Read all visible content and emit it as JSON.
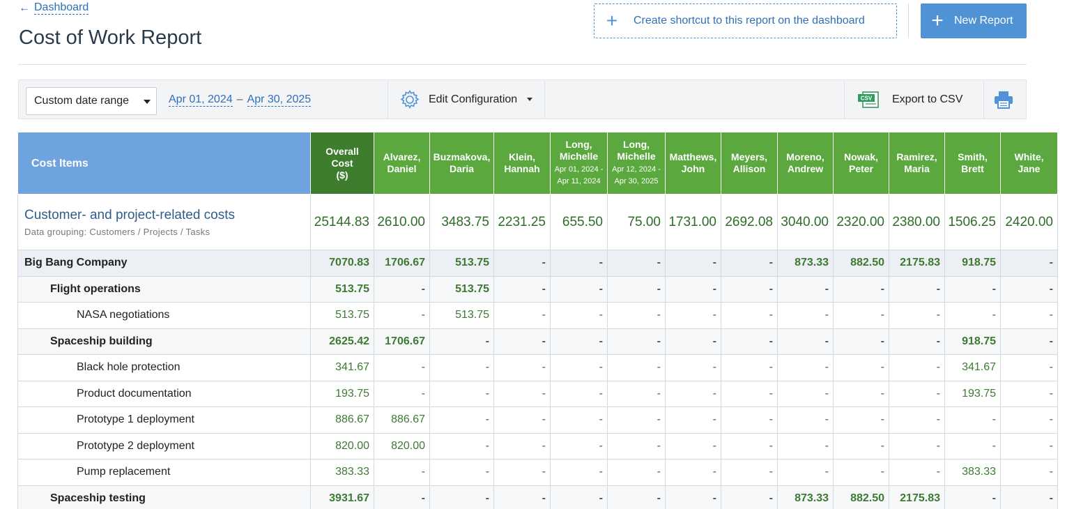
{
  "header": {
    "back_label": "Dashboard",
    "title": "Cost of Work Report",
    "shortcut_label": "Create shortcut to this report on the dashboard",
    "new_report_label": "New Report"
  },
  "toolbar": {
    "date_mode": "Custom date range",
    "date_from": "Apr 01, 2024",
    "date_sep": "–",
    "date_to": "Apr 30, 2025",
    "edit_config_label": "Edit Configuration",
    "export_label": "Export to CSV",
    "csv_badge": "CSV"
  },
  "colors": {
    "accent_blue": "#4f93d6",
    "header_green": "#5aa83e",
    "overall_green": "#3f7d2e",
    "items_blue": "#6fa3e0",
    "value_green": "#3d7a32"
  },
  "table": {
    "items_header": "Cost Items",
    "columns": [
      {
        "line1": "Overall",
        "line2": "Cost",
        "line3": "($)",
        "sub1": "",
        "sub2": ""
      },
      {
        "line1": "Alvarez,",
        "line2": "Daniel",
        "line3": "",
        "sub1": "",
        "sub2": ""
      },
      {
        "line1": "Buzmakova,",
        "line2": "Daria",
        "line3": "",
        "sub1": "",
        "sub2": ""
      },
      {
        "line1": "Klein,",
        "line2": "Hannah",
        "line3": "",
        "sub1": "",
        "sub2": ""
      },
      {
        "line1": "Long,",
        "line2": "Michelle",
        "line3": "",
        "sub1": "Apr 01, 2024 -",
        "sub2": "Apr 11, 2024"
      },
      {
        "line1": "Long,",
        "line2": "Michelle",
        "line3": "",
        "sub1": "Apr 12, 2024 -",
        "sub2": "Apr 30, 2025"
      },
      {
        "line1": "Matthews,",
        "line2": "John",
        "line3": "",
        "sub1": "",
        "sub2": ""
      },
      {
        "line1": "Meyers,",
        "line2": "Allison",
        "line3": "",
        "sub1": "",
        "sub2": ""
      },
      {
        "line1": "Moreno,",
        "line2": "Andrew",
        "line3": "",
        "sub1": "",
        "sub2": ""
      },
      {
        "line1": "Nowak,",
        "line2": "Peter",
        "line3": "",
        "sub1": "",
        "sub2": ""
      },
      {
        "line1": "Ramirez,",
        "line2": "Maria",
        "line3": "",
        "sub1": "",
        "sub2": ""
      },
      {
        "line1": "Smith,",
        "line2": "Brett",
        "line3": "",
        "sub1": "",
        "sub2": ""
      },
      {
        "line1": "White,",
        "line2": "Jane",
        "line3": "",
        "sub1": "",
        "sub2": ""
      }
    ],
    "summary": {
      "title": "Customer- and project-related costs",
      "subtitle": "Data grouping: Customers / Projects / Tasks",
      "values": [
        "25144.83",
        "2610.00",
        "3483.75",
        "2231.25",
        "655.50",
        "75.00",
        "1731.00",
        "2692.08",
        "3040.00",
        "2320.00",
        "2380.00",
        "1506.25",
        "2420.00"
      ]
    },
    "rows": [
      {
        "level": 0,
        "label": "Big Bang Company",
        "values": [
          "7070.83",
          "1706.67",
          "513.75",
          "-",
          "-",
          "-",
          "-",
          "-",
          "873.33",
          "882.50",
          "2175.83",
          "918.75",
          "-"
        ]
      },
      {
        "level": 1,
        "label": "Flight operations",
        "values": [
          "513.75",
          "-",
          "513.75",
          "-",
          "-",
          "-",
          "-",
          "-",
          "-",
          "-",
          "-",
          "-",
          "-"
        ]
      },
      {
        "level": 2,
        "label": "NASA negotiations",
        "values": [
          "513.75",
          "-",
          "513.75",
          "-",
          "-",
          "-",
          "-",
          "-",
          "-",
          "-",
          "-",
          "-",
          "-"
        ]
      },
      {
        "level": 1,
        "label": "Spaceship building",
        "values": [
          "2625.42",
          "1706.67",
          "-",
          "-",
          "-",
          "-",
          "-",
          "-",
          "-",
          "-",
          "-",
          "918.75",
          "-"
        ]
      },
      {
        "level": 2,
        "label": "Black hole protection",
        "values": [
          "341.67",
          "-",
          "-",
          "-",
          "-",
          "-",
          "-",
          "-",
          "-",
          "-",
          "-",
          "341.67",
          "-"
        ]
      },
      {
        "level": 2,
        "label": "Product documentation",
        "values": [
          "193.75",
          "-",
          "-",
          "-",
          "-",
          "-",
          "-",
          "-",
          "-",
          "-",
          "-",
          "193.75",
          "-"
        ]
      },
      {
        "level": 2,
        "label": "Prototype 1 deployment",
        "values": [
          "886.67",
          "886.67",
          "-",
          "-",
          "-",
          "-",
          "-",
          "-",
          "-",
          "-",
          "-",
          "-",
          "-"
        ]
      },
      {
        "level": 2,
        "label": "Prototype 2 deployment",
        "values": [
          "820.00",
          "820.00",
          "-",
          "-",
          "-",
          "-",
          "-",
          "-",
          "-",
          "-",
          "-",
          "-",
          "-"
        ]
      },
      {
        "level": 2,
        "label": "Pump replacement",
        "values": [
          "383.33",
          "-",
          "-",
          "-",
          "-",
          "-",
          "-",
          "-",
          "-",
          "-",
          "-",
          "383.33",
          "-"
        ]
      },
      {
        "level": 1,
        "label": "Spaceship testing",
        "values": [
          "3931.67",
          "-",
          "-",
          "-",
          "-",
          "-",
          "-",
          "-",
          "873.33",
          "882.50",
          "2175.83",
          "-",
          "-"
        ]
      }
    ]
  }
}
